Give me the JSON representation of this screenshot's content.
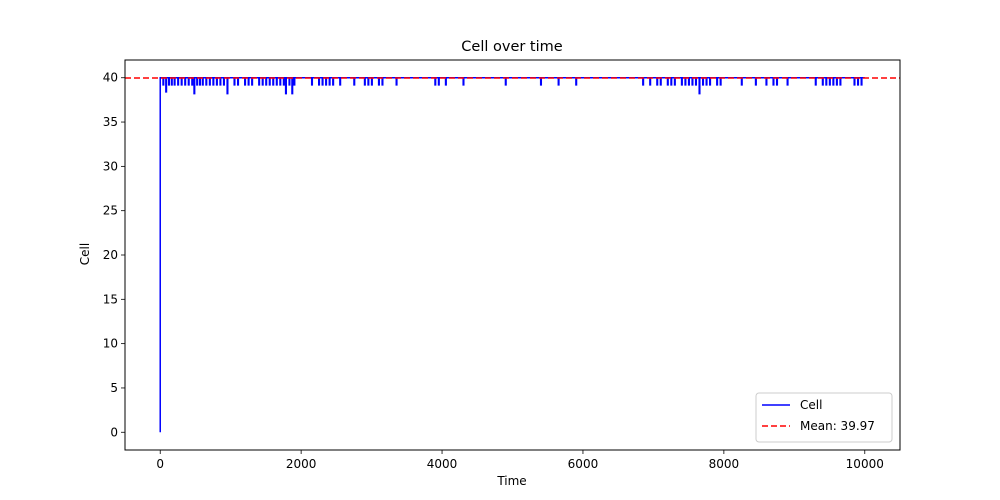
{
  "chart_data": {
    "type": "line",
    "title": "Cell over time",
    "xlabel": "Time",
    "ylabel": "Cell",
    "xlim": [
      -500,
      10500
    ],
    "ylim": [
      -2,
      42
    ],
    "xticks": [
      0,
      2000,
      4000,
      6000,
      8000,
      10000
    ],
    "yticks": [
      0,
      5,
      10,
      15,
      20,
      25,
      30,
      35,
      40
    ],
    "grid": false,
    "legend_position": "lower-right",
    "series": [
      {
        "name": "Cell",
        "color": "#0000ff",
        "style": "solid",
        "baseline": 40,
        "x_range": [
          0,
          10000
        ],
        "start_value": 0,
        "dips": [
          {
            "x": 40,
            "y": 39.2
          },
          {
            "x": 80,
            "y": 38.4
          },
          {
            "x": 120,
            "y": 39.2
          },
          {
            "x": 160,
            "y": 39.2
          },
          {
            "x": 200,
            "y": 39.2
          },
          {
            "x": 250,
            "y": 39.2
          },
          {
            "x": 300,
            "y": 39.2
          },
          {
            "x": 350,
            "y": 39.2
          },
          {
            "x": 400,
            "y": 39.2
          },
          {
            "x": 450,
            "y": 39.2
          },
          {
            "x": 480,
            "y": 38.2
          },
          {
            "x": 520,
            "y": 39.2
          },
          {
            "x": 560,
            "y": 39.2
          },
          {
            "x": 600,
            "y": 39.2
          },
          {
            "x": 650,
            "y": 39.2
          },
          {
            "x": 700,
            "y": 39.2
          },
          {
            "x": 750,
            "y": 39.2
          },
          {
            "x": 800,
            "y": 39.2
          },
          {
            "x": 850,
            "y": 39.2
          },
          {
            "x": 900,
            "y": 39.2
          },
          {
            "x": 950,
            "y": 38.2
          },
          {
            "x": 1050,
            "y": 39.2
          },
          {
            "x": 1100,
            "y": 39.2
          },
          {
            "x": 1200,
            "y": 39.2
          },
          {
            "x": 1250,
            "y": 39.2
          },
          {
            "x": 1300,
            "y": 39.2
          },
          {
            "x": 1400,
            "y": 39.2
          },
          {
            "x": 1450,
            "y": 39.2
          },
          {
            "x": 1500,
            "y": 39.2
          },
          {
            "x": 1550,
            "y": 39.2
          },
          {
            "x": 1600,
            "y": 39.2
          },
          {
            "x": 1650,
            "y": 39.2
          },
          {
            "x": 1700,
            "y": 39.2
          },
          {
            "x": 1750,
            "y": 39.2
          },
          {
            "x": 1780,
            "y": 38.2
          },
          {
            "x": 1830,
            "y": 39.2
          },
          {
            "x": 1870,
            "y": 38.2
          },
          {
            "x": 1900,
            "y": 39.2
          },
          {
            "x": 2150,
            "y": 39.2
          },
          {
            "x": 2250,
            "y": 39.2
          },
          {
            "x": 2300,
            "y": 39.2
          },
          {
            "x": 2350,
            "y": 39.2
          },
          {
            "x": 2400,
            "y": 39.2
          },
          {
            "x": 2450,
            "y": 39.2
          },
          {
            "x": 2550,
            "y": 39.2
          },
          {
            "x": 2750,
            "y": 39.2
          },
          {
            "x": 2900,
            "y": 39.2
          },
          {
            "x": 2950,
            "y": 39.2
          },
          {
            "x": 3000,
            "y": 39.2
          },
          {
            "x": 3100,
            "y": 39.2
          },
          {
            "x": 3150,
            "y": 39.2
          },
          {
            "x": 3350,
            "y": 39.2
          },
          {
            "x": 3900,
            "y": 39.2
          },
          {
            "x": 3950,
            "y": 39.2
          },
          {
            "x": 4050,
            "y": 39.2
          },
          {
            "x": 4300,
            "y": 39.2
          },
          {
            "x": 4900,
            "y": 39.2
          },
          {
            "x": 5400,
            "y": 39.2
          },
          {
            "x": 5650,
            "y": 39.2
          },
          {
            "x": 5900,
            "y": 39.2
          },
          {
            "x": 6850,
            "y": 39.2
          },
          {
            "x": 6950,
            "y": 39.2
          },
          {
            "x": 7050,
            "y": 39.2
          },
          {
            "x": 7100,
            "y": 39.2
          },
          {
            "x": 7200,
            "y": 39.2
          },
          {
            "x": 7250,
            "y": 39.2
          },
          {
            "x": 7300,
            "y": 39.2
          },
          {
            "x": 7400,
            "y": 39.2
          },
          {
            "x": 7450,
            "y": 39.2
          },
          {
            "x": 7500,
            "y": 39.2
          },
          {
            "x": 7550,
            "y": 39.2
          },
          {
            "x": 7600,
            "y": 39.2
          },
          {
            "x": 7650,
            "y": 38.2
          },
          {
            "x": 7700,
            "y": 39.2
          },
          {
            "x": 7750,
            "y": 39.2
          },
          {
            "x": 7800,
            "y": 39.2
          },
          {
            "x": 7900,
            "y": 39.2
          },
          {
            "x": 7950,
            "y": 39.2
          },
          {
            "x": 8250,
            "y": 39.2
          },
          {
            "x": 8450,
            "y": 39.2
          },
          {
            "x": 8600,
            "y": 39.2
          },
          {
            "x": 8700,
            "y": 39.2
          },
          {
            "x": 8750,
            "y": 39.2
          },
          {
            "x": 8900,
            "y": 39.2
          },
          {
            "x": 9300,
            "y": 39.2
          },
          {
            "x": 9400,
            "y": 39.2
          },
          {
            "x": 9450,
            "y": 39.2
          },
          {
            "x": 9500,
            "y": 39.2
          },
          {
            "x": 9550,
            "y": 39.2
          },
          {
            "x": 9600,
            "y": 39.2
          },
          {
            "x": 9650,
            "y": 39.2
          },
          {
            "x": 9850,
            "y": 39.2
          },
          {
            "x": 9900,
            "y": 39.2
          },
          {
            "x": 9950,
            "y": 39.2
          }
        ]
      },
      {
        "name": "Mean: 39.97",
        "color": "#ff0000",
        "style": "dashed",
        "value": 39.97
      }
    ]
  }
}
